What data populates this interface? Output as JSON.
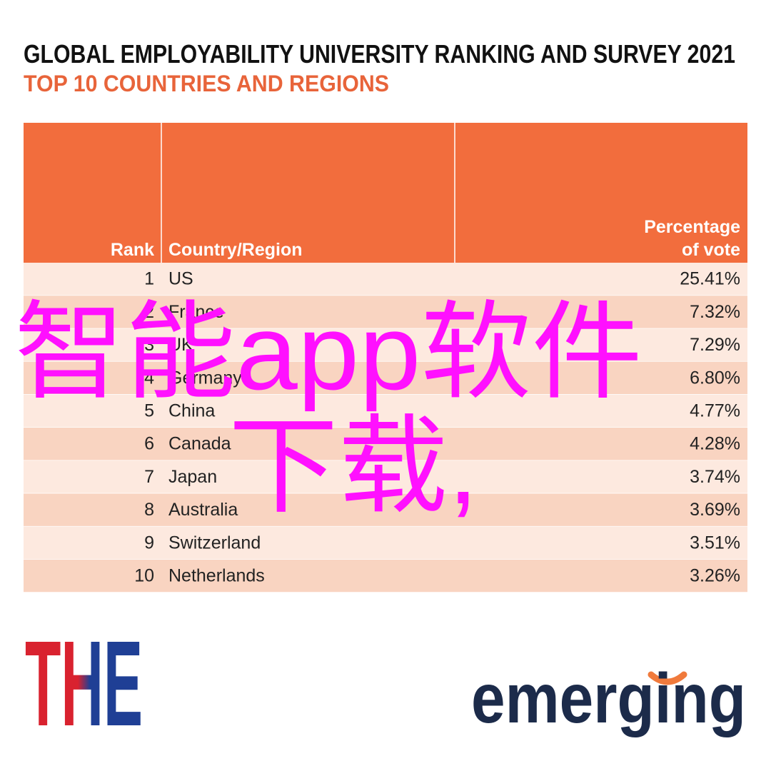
{
  "header": {
    "title": "GLOBAL EMPLOYABILITY UNIVERSITY RANKING AND SURVEY 2021",
    "subtitle": "TOP 10 COUNTRIES AND REGIONS"
  },
  "table": {
    "columns": [
      "Rank",
      "Country/Region",
      [
        "Percentage",
        "of vote"
      ]
    ],
    "rows": [
      [
        "1",
        "US",
        "25.41%"
      ],
      [
        "2",
        "France",
        "7.32%"
      ],
      [
        "3",
        "UK",
        "7.29%"
      ],
      [
        "4",
        "Germany",
        "6.80%"
      ],
      [
        "5",
        "China",
        "4.77%"
      ],
      [
        "6",
        "Canada",
        "4.28%"
      ],
      [
        "7",
        "Japan",
        "3.74%"
      ],
      [
        "8",
        "Australia",
        "3.69%"
      ],
      [
        "9",
        "Switzerland",
        "3.51%"
      ],
      [
        "10",
        "Netherlands",
        "3.26%"
      ]
    ]
  },
  "watermark": [
    "智能app软件",
    "下载,"
  ],
  "logos": {
    "left": "THE",
    "right": "emerging"
  }
}
